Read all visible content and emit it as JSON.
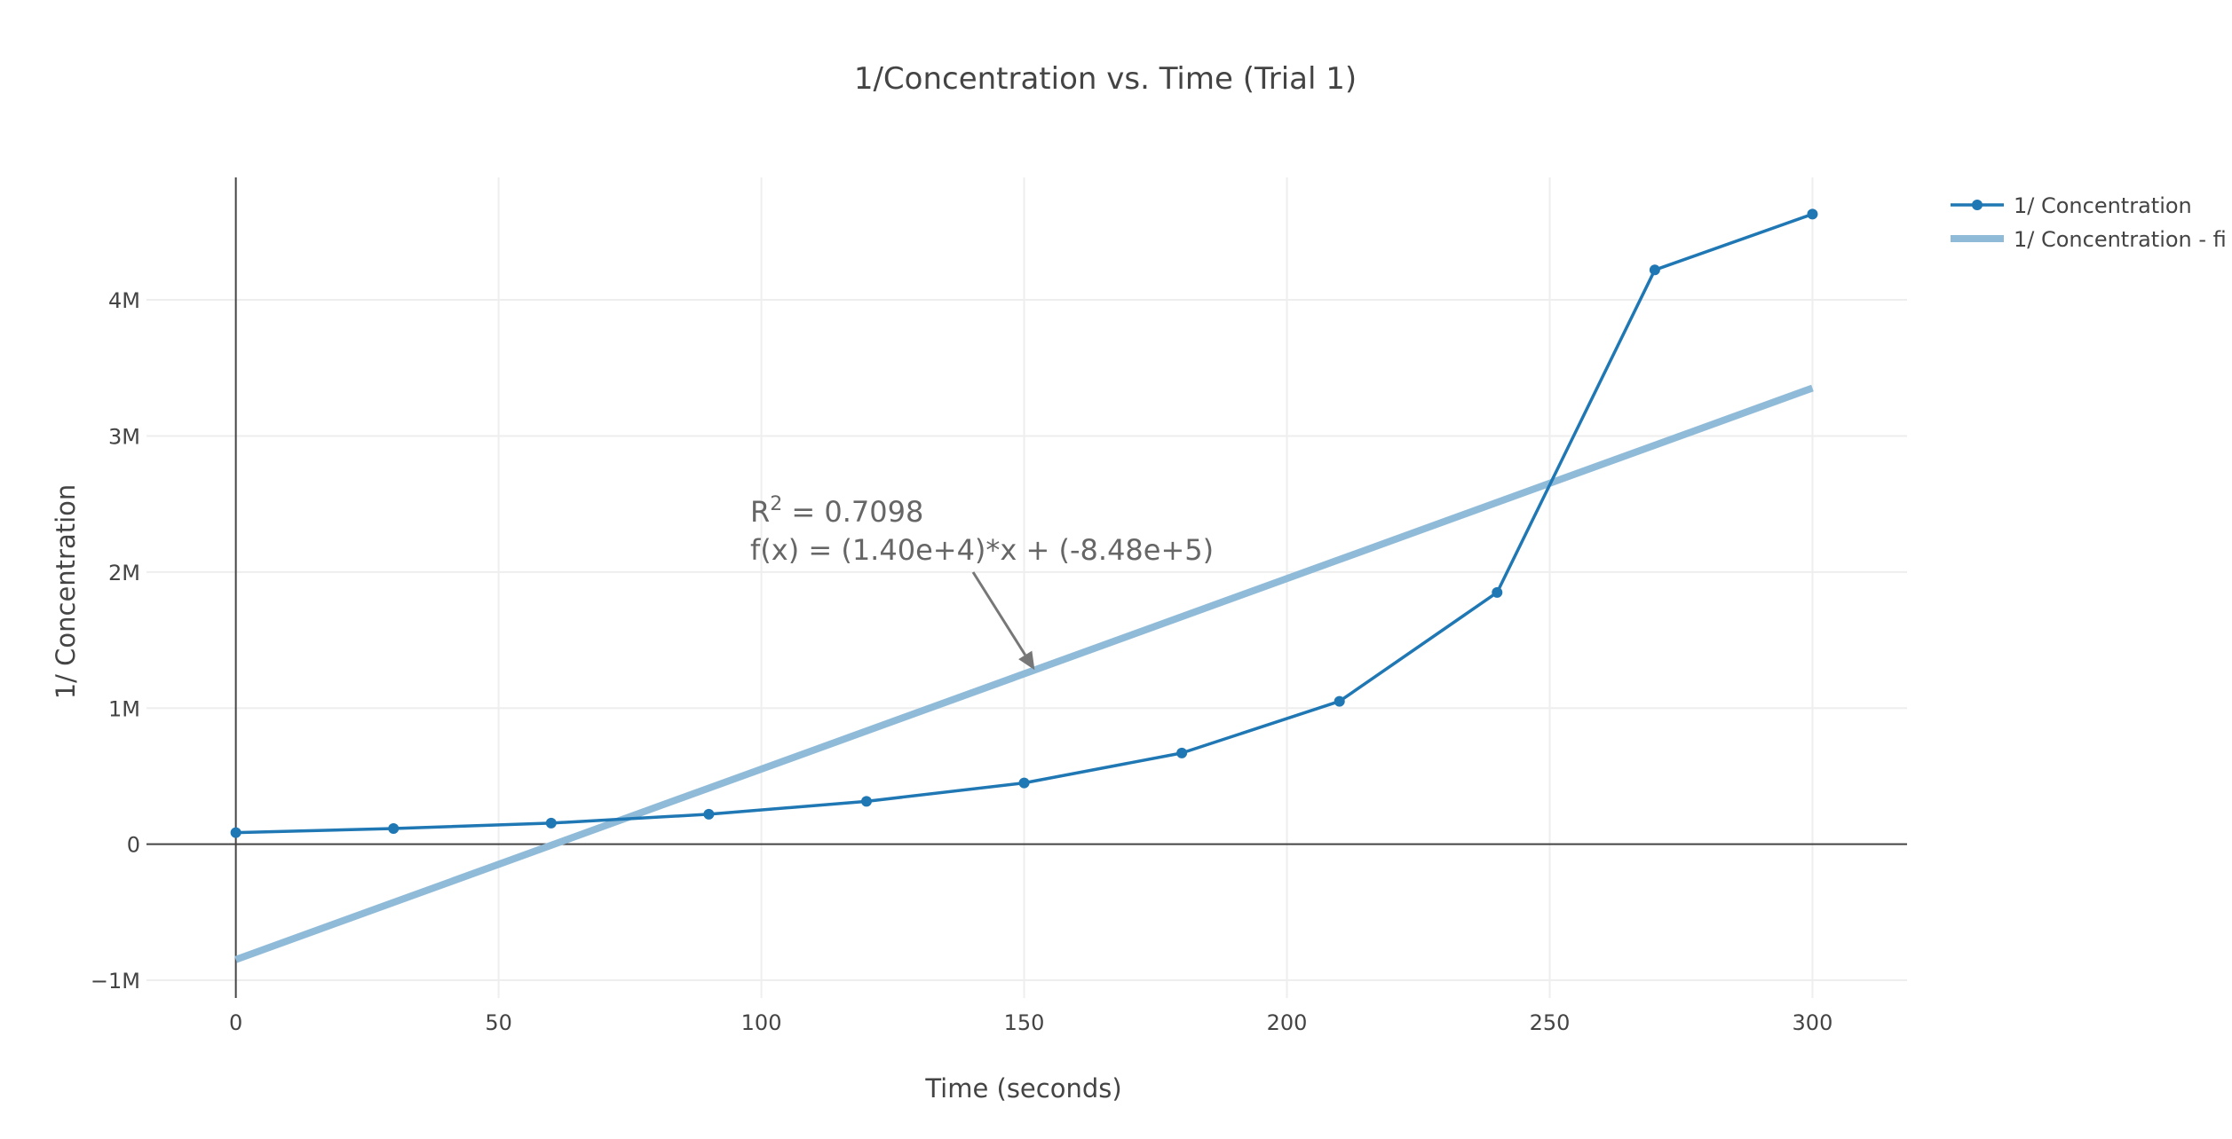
{
  "chart_data": {
    "type": "line",
    "title": "1/Concentration vs. Time (Trial 1)",
    "xlabel": "Time (seconds)",
    "ylabel": "1/ Concentration",
    "xlim": [
      -17,
      318
    ],
    "ylim": [
      -1130000,
      4900000
    ],
    "x_ticks": [
      0,
      50,
      100,
      150,
      200,
      250,
      300
    ],
    "x_tick_labels": [
      "0",
      "50",
      "100",
      "150",
      "200",
      "250",
      "300"
    ],
    "y_ticks": [
      -1000000,
      0,
      1000000,
      2000000,
      3000000,
      4000000
    ],
    "y_tick_labels": [
      "−1M",
      "0",
      "1M",
      "2M",
      "3M",
      "4M"
    ],
    "grid": true,
    "legend_position": "top-right",
    "series": [
      {
        "name": "1/ Concentration",
        "mode": "lines+markers",
        "color": "#1f77b4",
        "x": [
          0,
          30,
          60,
          90,
          120,
          150,
          180,
          210,
          240,
          270,
          300
        ],
        "y": [
          85000,
          115000,
          155000,
          220000,
          315000,
          450000,
          670000,
          1050000,
          1850000,
          4220000,
          4630000
        ]
      },
      {
        "name": "1/ Concentration - fi",
        "mode": "lines",
        "color": "#8fbbd9",
        "x": [
          0,
          300
        ],
        "y": [
          -848000,
          3352000
        ]
      }
    ],
    "annotation": {
      "r2_prefix": "R",
      "r2_sup": "2",
      "r2_suffix": " = 0.7098",
      "equation": "f(x) = (1.40e+4)*x + (-8.48e+5)",
      "arrow_target_x": 152,
      "arrow_target_y": 1280000
    }
  }
}
